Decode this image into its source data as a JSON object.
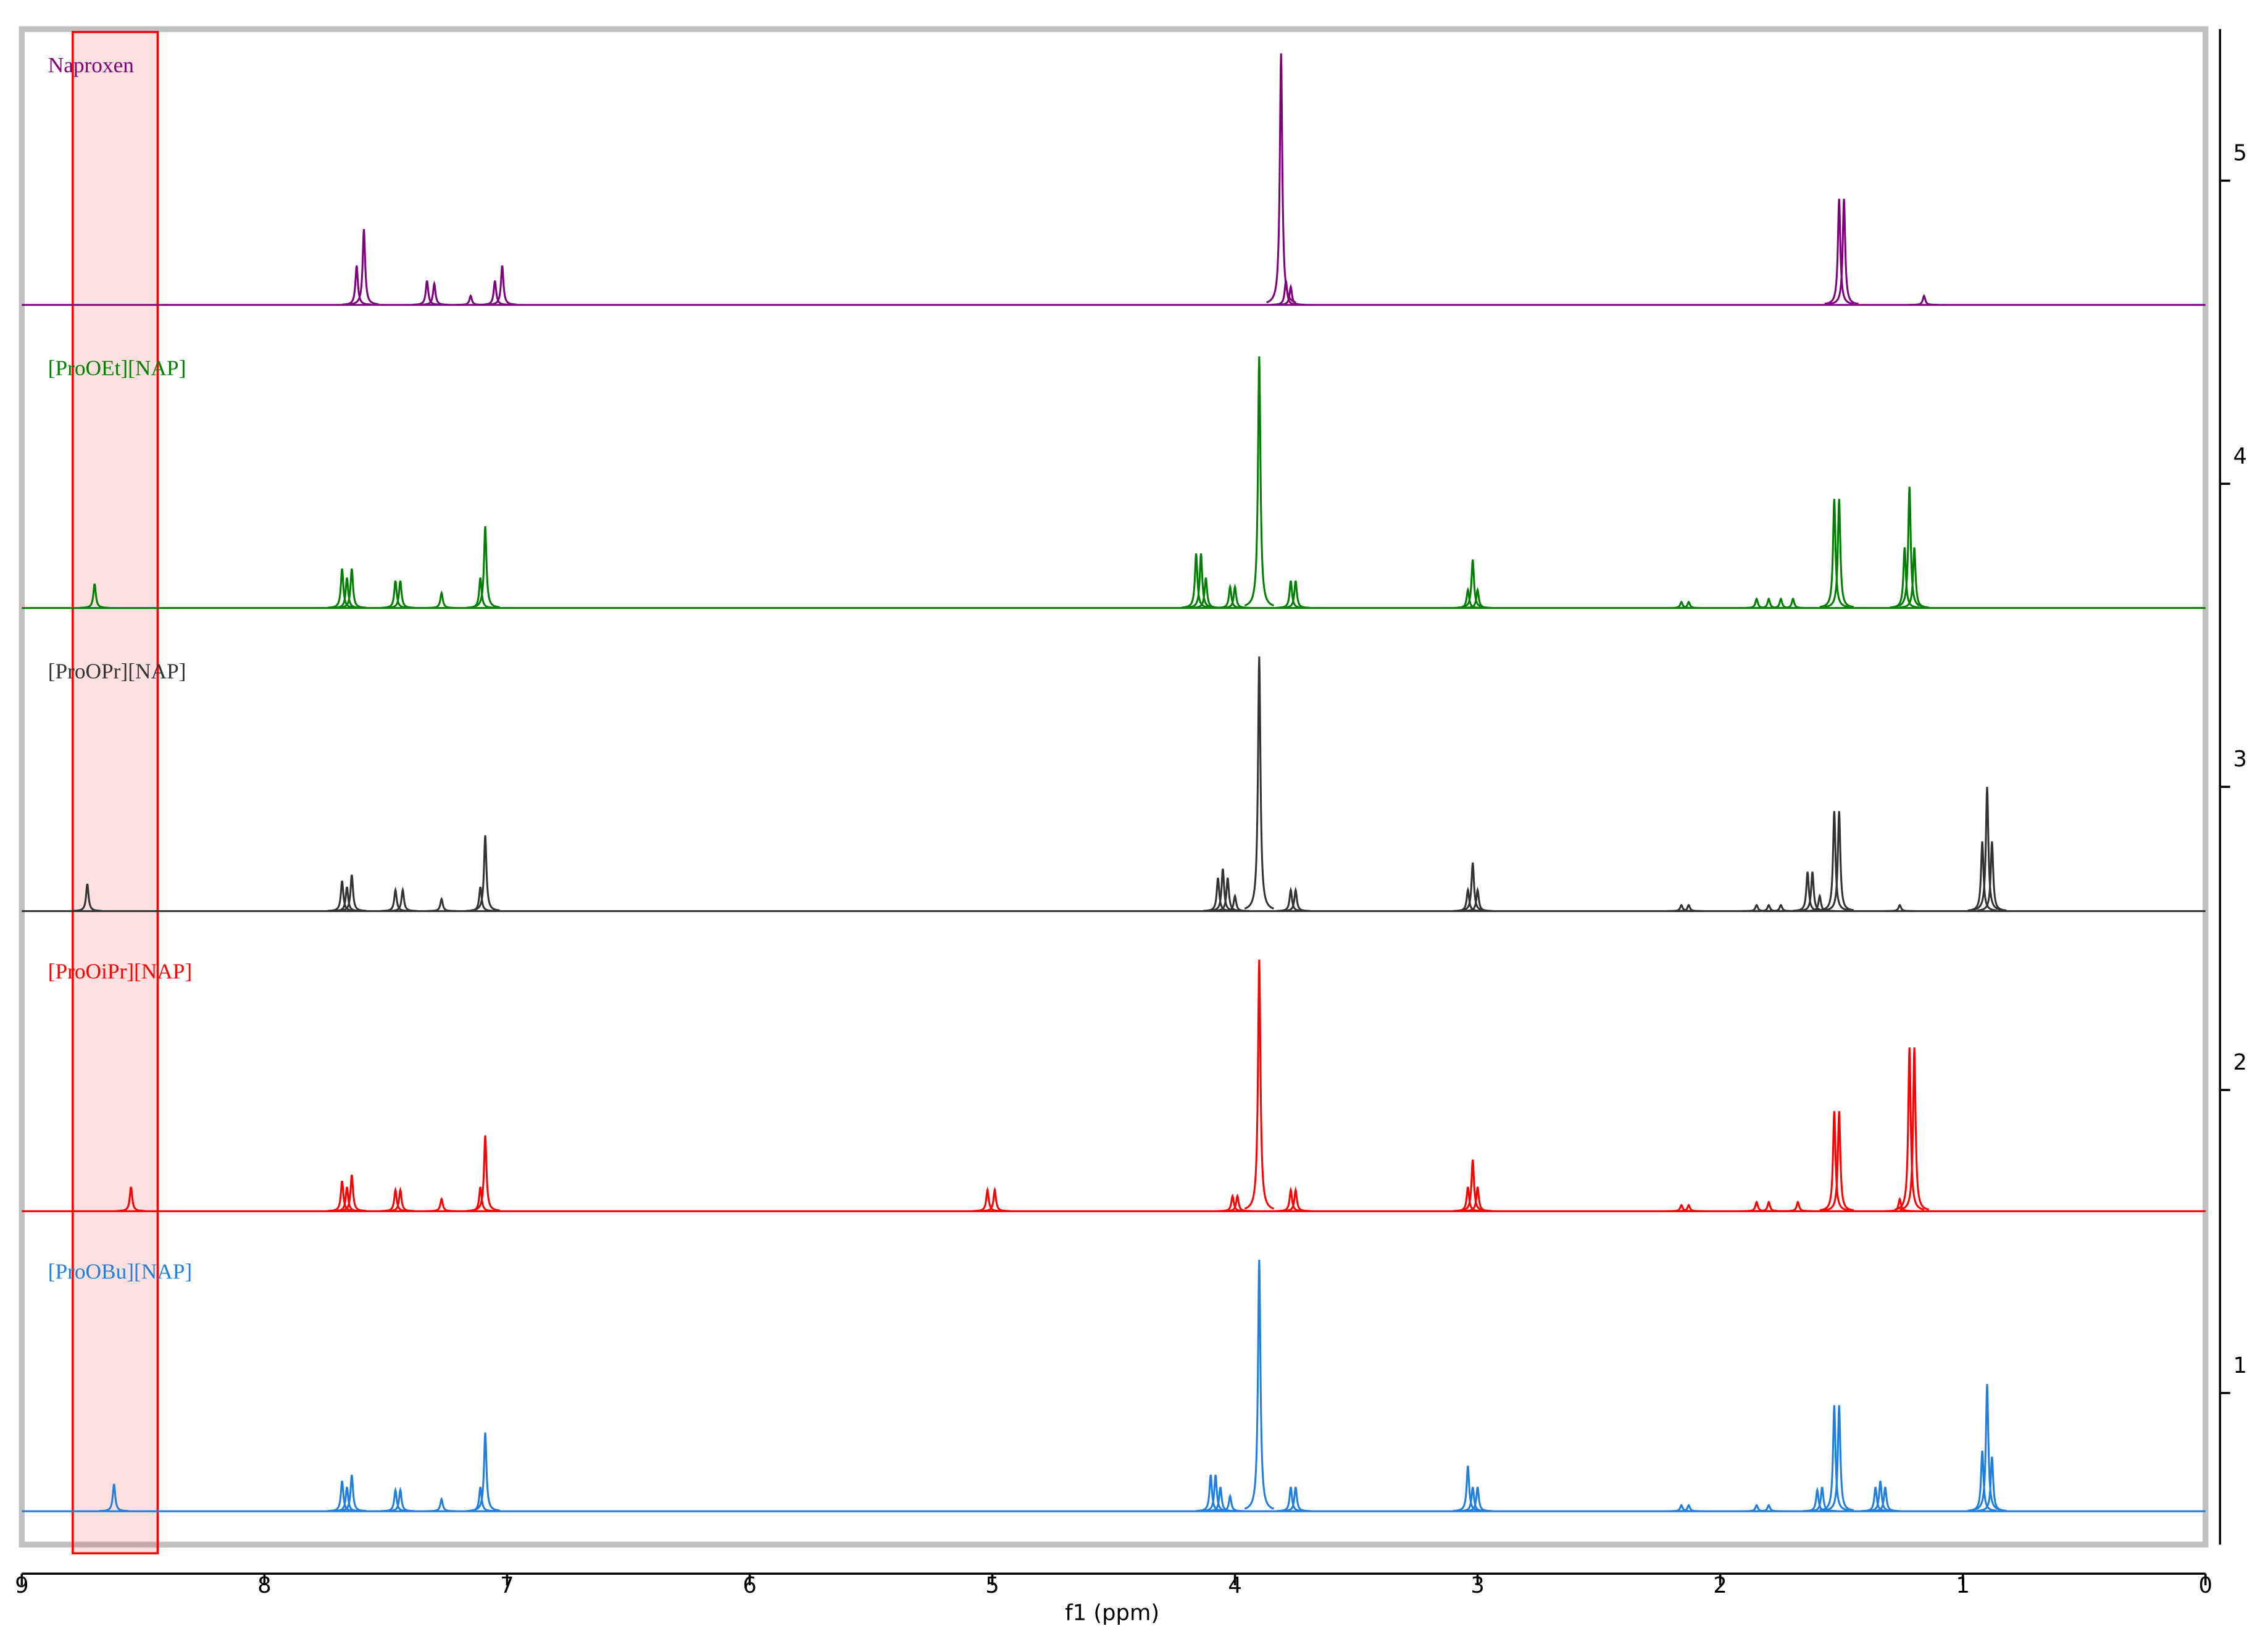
{
  "chart_data": {
    "type": "nmr-stack",
    "x_label": "f1 (ppm)",
    "xlim": [
      9,
      0
    ],
    "xticks": [
      9,
      8,
      7,
      6,
      5,
      4,
      3,
      2,
      1,
      0
    ],
    "ylim": [
      0.5,
      5.5
    ],
    "yticks": [
      1,
      2,
      3,
      4,
      5
    ],
    "highlight_range": [
      8.79,
      8.44
    ],
    "highlight_color": "#ff0000",
    "series": [
      {
        "name": "Naproxen",
        "color": "#800080",
        "baseline": 4.59,
        "x": [
          7.62,
          7.59,
          7.33,
          7.3,
          7.15,
          7.05,
          7.02,
          3.81,
          3.79,
          3.77,
          1.51,
          1.49,
          1.16
        ],
        "values": [
          0.13,
          0.25,
          0.08,
          0.07,
          0.03,
          0.08,
          0.13,
          0.83,
          0.08,
          0.06,
          0.35,
          0.35,
          0.03
        ]
      },
      {
        "name": "[ProOEt][NAP]",
        "color": "#008000",
        "baseline": 3.59,
        "x": [
          8.7,
          7.68,
          7.66,
          7.64,
          7.46,
          7.44,
          7.27,
          7.11,
          7.09,
          4.16,
          4.14,
          4.12,
          4.02,
          4.0,
          3.9,
          3.77,
          3.75,
          3.04,
          3.02,
          3.0,
          2.16,
          2.13,
          1.85,
          1.8,
          1.75,
          1.7,
          1.53,
          1.51,
          1.24,
          1.22,
          1.2
        ],
        "values": [
          0.08,
          0.13,
          0.1,
          0.13,
          0.09,
          0.09,
          0.05,
          0.1,
          0.27,
          0.18,
          0.18,
          0.1,
          0.07,
          0.07,
          0.83,
          0.09,
          0.09,
          0.06,
          0.16,
          0.06,
          0.02,
          0.02,
          0.03,
          0.03,
          0.03,
          0.03,
          0.36,
          0.36,
          0.2,
          0.4,
          0.2
        ]
      },
      {
        "name": "[ProOPr][NAP]",
        "color": "#333333",
        "baseline": 2.59,
        "x": [
          8.73,
          7.68,
          7.66,
          7.64,
          7.46,
          7.43,
          7.27,
          7.11,
          7.09,
          4.07,
          4.05,
          4.03,
          4.0,
          3.9,
          3.77,
          3.75,
          3.04,
          3.02,
          3.0,
          2.16,
          2.13,
          1.85,
          1.8,
          1.75,
          1.64,
          1.62,
          1.59,
          1.53,
          1.51,
          1.26,
          0.92,
          0.9,
          0.88
        ],
        "values": [
          0.09,
          0.1,
          0.08,
          0.12,
          0.07,
          0.07,
          0.04,
          0.08,
          0.25,
          0.11,
          0.14,
          0.11,
          0.05,
          0.84,
          0.07,
          0.07,
          0.07,
          0.16,
          0.07,
          0.02,
          0.02,
          0.02,
          0.02,
          0.02,
          0.13,
          0.13,
          0.05,
          0.33,
          0.33,
          0.02,
          0.23,
          0.41,
          0.23
        ]
      },
      {
        "name": "[ProOiPr][NAP]",
        "color": "#ff0000",
        "baseline": 1.6,
        "x": [
          8.55,
          7.68,
          7.66,
          7.64,
          7.46,
          7.44,
          7.27,
          7.11,
          7.09,
          5.02,
          4.99,
          4.01,
          3.99,
          3.9,
          3.77,
          3.75,
          3.04,
          3.02,
          3.0,
          2.16,
          2.13,
          1.85,
          1.8,
          1.68,
          1.53,
          1.51,
          1.26,
          1.22,
          1.2
        ],
        "values": [
          0.08,
          0.1,
          0.08,
          0.12,
          0.07,
          0.07,
          0.04,
          0.08,
          0.25,
          0.07,
          0.07,
          0.05,
          0.05,
          0.83,
          0.07,
          0.07,
          0.08,
          0.17,
          0.08,
          0.02,
          0.02,
          0.03,
          0.03,
          0.03,
          0.33,
          0.33,
          0.04,
          0.54,
          0.54
        ]
      },
      {
        "name": "[ProOBu][NAP]",
        "color": "#1e7fe0",
        "baseline": 0.61,
        "x": [
          8.62,
          7.68,
          7.66,
          7.64,
          7.46,
          7.44,
          7.27,
          7.11,
          7.09,
          4.1,
          4.08,
          4.06,
          4.02,
          3.9,
          3.77,
          3.75,
          3.04,
          3.02,
          3.0,
          2.16,
          2.13,
          1.85,
          1.8,
          1.6,
          1.58,
          1.53,
          1.51,
          1.36,
          1.34,
          1.32,
          0.92,
          0.9,
          0.88
        ],
        "values": [
          0.09,
          0.1,
          0.08,
          0.12,
          0.07,
          0.07,
          0.04,
          0.08,
          0.26,
          0.12,
          0.12,
          0.08,
          0.05,
          0.83,
          0.08,
          0.08,
          0.15,
          0.08,
          0.08,
          0.02,
          0.02,
          0.02,
          0.02,
          0.07,
          0.08,
          0.35,
          0.35,
          0.08,
          0.1,
          0.08,
          0.2,
          0.42,
          0.18
        ]
      }
    ]
  }
}
